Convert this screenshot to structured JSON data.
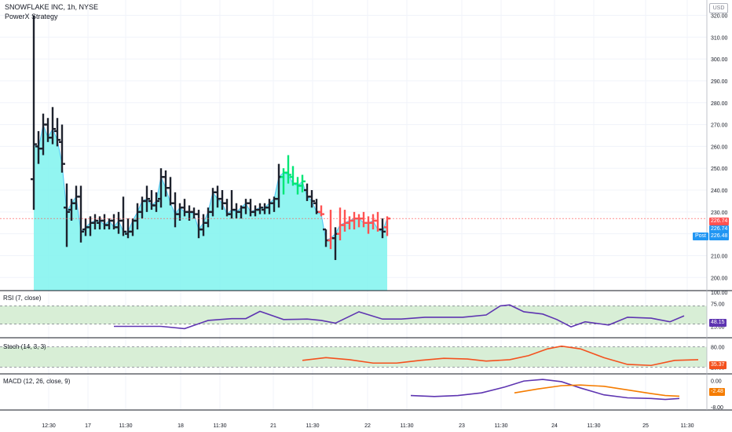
{
  "header": {
    "symbol_line": "SNOWFLAKE INC, 1h, NYSE",
    "strategy": "PowerX Strategy"
  },
  "currency_badge": "USD",
  "colors": {
    "up_bar": "#00e676",
    "down_bar": "#ff5252",
    "neutral_bar": "#1e222d",
    "area_fill": "#7ff3ef",
    "area_line": "#4fc3f7",
    "rsi_line": "#5e35b1",
    "stoch_line": "#f4511e",
    "macd_line": "#5e35b1",
    "signal_line": "#f57c00",
    "zone_fill": "#d8eed6",
    "axis_text": "#131722"
  },
  "price_tags": {
    "last_red": "226.74",
    "last_blue": "226.74",
    "post_label": "Post",
    "post_price": "226.48"
  },
  "panes": {
    "rsi": {
      "label": "RSI (7, close)",
      "value": "48.15"
    },
    "stoch": {
      "label": "Stoch (14, 3, 3)",
      "value": "35.37"
    },
    "macd": {
      "label": "MACD (12, 26, close, 9)",
      "value": "-2.48"
    }
  },
  "chart_data": [
    {
      "type": "ohlc",
      "pane": "price",
      "y_ticks": [
        200,
        210,
        220,
        230,
        240,
        250,
        260,
        270,
        280,
        290,
        300,
        310,
        320
      ],
      "ylim": [
        194,
        327
      ],
      "x_labels": [
        "12:30",
        "17",
        "11:30",
        "18",
        "11:30",
        "21",
        "11:30",
        "22",
        "11:30",
        "23",
        "11:30",
        "24",
        "11:30",
        "25",
        "11:30"
      ],
      "bars": [
        {
          "o": 245,
          "h": 320,
          "l": 231,
          "c": 261,
          "s": "n"
        },
        {
          "o": 260,
          "h": 267,
          "l": 252,
          "c": 259,
          "s": "n"
        },
        {
          "o": 259,
          "h": 275,
          "l": 256,
          "c": 270,
          "s": "n"
        },
        {
          "o": 270,
          "h": 273,
          "l": 262,
          "c": 264,
          "s": "n"
        },
        {
          "o": 264,
          "h": 278,
          "l": 261,
          "c": 268,
          "s": "n"
        },
        {
          "o": 267,
          "h": 273,
          "l": 260,
          "c": 263,
          "s": "n"
        },
        {
          "o": 262,
          "h": 270,
          "l": 248,
          "c": 252,
          "s": "n"
        },
        {
          "o": 232,
          "h": 243,
          "l": 214,
          "c": 230,
          "s": "n"
        },
        {
          "o": 231,
          "h": 236,
          "l": 226,
          "c": 234,
          "s": "n"
        },
        {
          "o": 234,
          "h": 242,
          "l": 231,
          "c": 237,
          "s": "n"
        },
        {
          "o": 237,
          "h": 242,
          "l": 216,
          "c": 221,
          "s": "n"
        },
        {
          "o": 222,
          "h": 227,
          "l": 219,
          "c": 223,
          "s": "n"
        },
        {
          "o": 223,
          "h": 228,
          "l": 219,
          "c": 225,
          "s": "n"
        },
        {
          "o": 225,
          "h": 229,
          "l": 222,
          "c": 226,
          "s": "n"
        },
        {
          "o": 225,
          "h": 228,
          "l": 222,
          "c": 226,
          "s": "n"
        },
        {
          "o": 226,
          "h": 229,
          "l": 222,
          "c": 224,
          "s": "n"
        },
        {
          "o": 224,
          "h": 227,
          "l": 222,
          "c": 226,
          "s": "n"
        },
        {
          "o": 226,
          "h": 229,
          "l": 222,
          "c": 223,
          "s": "n"
        },
        {
          "o": 223,
          "h": 230,
          "l": 220,
          "c": 226,
          "s": "n"
        },
        {
          "o": 226,
          "h": 237,
          "l": 219,
          "c": 221,
          "s": "n"
        },
        {
          "o": 220,
          "h": 227,
          "l": 218,
          "c": 221,
          "s": "n"
        },
        {
          "o": 221,
          "h": 227,
          "l": 219,
          "c": 226,
          "s": "n"
        },
        {
          "o": 226,
          "h": 234,
          "l": 222,
          "c": 230,
          "s": "n"
        },
        {
          "o": 230,
          "h": 237,
          "l": 227,
          "c": 235,
          "s": "n"
        },
        {
          "o": 235,
          "h": 242,
          "l": 230,
          "c": 236,
          "s": "n"
        },
        {
          "o": 235,
          "h": 240,
          "l": 231,
          "c": 233,
          "s": "n"
        },
        {
          "o": 233,
          "h": 239,
          "l": 230,
          "c": 235,
          "s": "n"
        },
        {
          "o": 236,
          "h": 250,
          "l": 232,
          "c": 246,
          "s": "n"
        },
        {
          "o": 246,
          "h": 249,
          "l": 237,
          "c": 241,
          "s": "n"
        },
        {
          "o": 241,
          "h": 246,
          "l": 233,
          "c": 234,
          "s": "n"
        },
        {
          "o": 234,
          "h": 239,
          "l": 223,
          "c": 229,
          "s": "n"
        },
        {
          "o": 229,
          "h": 234,
          "l": 226,
          "c": 232,
          "s": "n"
        },
        {
          "o": 232,
          "h": 236,
          "l": 228,
          "c": 230,
          "s": "n"
        },
        {
          "o": 230,
          "h": 233,
          "l": 226,
          "c": 230,
          "s": "n"
        },
        {
          "o": 230,
          "h": 232,
          "l": 227,
          "c": 229,
          "s": "n"
        },
        {
          "o": 229,
          "h": 231,
          "l": 218,
          "c": 222,
          "s": "n"
        },
        {
          "o": 222,
          "h": 229,
          "l": 219,
          "c": 225,
          "s": "n"
        },
        {
          "o": 225,
          "h": 232,
          "l": 223,
          "c": 230,
          "s": "n"
        },
        {
          "o": 230,
          "h": 241,
          "l": 228,
          "c": 239,
          "s": "n"
        },
        {
          "o": 239,
          "h": 242,
          "l": 232,
          "c": 236,
          "s": "n"
        },
        {
          "o": 236,
          "h": 240,
          "l": 231,
          "c": 234,
          "s": "n"
        },
        {
          "o": 234,
          "h": 236,
          "l": 228,
          "c": 229,
          "s": "n"
        },
        {
          "o": 229,
          "h": 240,
          "l": 227,
          "c": 231,
          "s": "n"
        },
        {
          "o": 231,
          "h": 234,
          "l": 227,
          "c": 230,
          "s": "n"
        },
        {
          "o": 230,
          "h": 233,
          "l": 227,
          "c": 232,
          "s": "n"
        },
        {
          "o": 232,
          "h": 236,
          "l": 229,
          "c": 234,
          "s": "n"
        },
        {
          "o": 234,
          "h": 236,
          "l": 228,
          "c": 230,
          "s": "n"
        },
        {
          "o": 230,
          "h": 233,
          "l": 228,
          "c": 231,
          "s": "n"
        },
        {
          "o": 231,
          "h": 234,
          "l": 229,
          "c": 232,
          "s": "n"
        },
        {
          "o": 231,
          "h": 234,
          "l": 229,
          "c": 232,
          "s": "n"
        },
        {
          "o": 232,
          "h": 236,
          "l": 229,
          "c": 234,
          "s": "n"
        },
        {
          "o": 234,
          "h": 237,
          "l": 230,
          "c": 236,
          "s": "n"
        },
        {
          "o": 236,
          "h": 252,
          "l": 232,
          "c": 246,
          "s": "n"
        },
        {
          "o": 246,
          "h": 250,
          "l": 238,
          "c": 248,
          "s": "u"
        },
        {
          "o": 248,
          "h": 256,
          "l": 243,
          "c": 247,
          "s": "u"
        },
        {
          "o": 246,
          "h": 251,
          "l": 242,
          "c": 243,
          "s": "u"
        },
        {
          "o": 243,
          "h": 246,
          "l": 238,
          "c": 242,
          "s": "u"
        },
        {
          "o": 242,
          "h": 247,
          "l": 239,
          "c": 244,
          "s": "u"
        },
        {
          "o": 240,
          "h": 243,
          "l": 235,
          "c": 237,
          "s": "n"
        },
        {
          "o": 237,
          "h": 240,
          "l": 232,
          "c": 235,
          "s": "n"
        },
        {
          "o": 234,
          "h": 236,
          "l": 229,
          "c": 230,
          "s": "n"
        },
        {
          "o": 230,
          "h": 233,
          "l": 228,
          "c": 229,
          "s": "d"
        },
        {
          "o": 222,
          "h": 222,
          "l": 214,
          "c": 217,
          "s": "n"
        },
        {
          "o": 217,
          "h": 231,
          "l": 213,
          "c": 218,
          "s": "d"
        },
        {
          "o": 218,
          "h": 223,
          "l": 208,
          "c": 220,
          "s": "n"
        },
        {
          "o": 220,
          "h": 232,
          "l": 217,
          "c": 224,
          "s": "d"
        },
        {
          "o": 224,
          "h": 231,
          "l": 221,
          "c": 225,
          "s": "d"
        },
        {
          "o": 225,
          "h": 228,
          "l": 222,
          "c": 226,
          "s": "d"
        },
        {
          "o": 226,
          "h": 230,
          "l": 222,
          "c": 227,
          "s": "d"
        },
        {
          "o": 227,
          "h": 229,
          "l": 223,
          "c": 227,
          "s": "d"
        },
        {
          "o": 227,
          "h": 230,
          "l": 223,
          "c": 225,
          "s": "d"
        },
        {
          "o": 225,
          "h": 228,
          "l": 220,
          "c": 225,
          "s": "d"
        },
        {
          "o": 225,
          "h": 229,
          "l": 222,
          "c": 226,
          "s": "d"
        },
        {
          "o": 226,
          "h": 230,
          "l": 221,
          "c": 222,
          "s": "d"
        },
        {
          "o": 222,
          "h": 227,
          "l": 218,
          "c": 221,
          "s": "n"
        },
        {
          "o": 223,
          "h": 228,
          "l": 219,
          "c": 227,
          "s": "d"
        }
      ]
    },
    {
      "type": "line",
      "pane": "rsi",
      "y_ticks": [
        "100.00",
        "75.00",
        "25.00"
      ],
      "ylim": [
        0,
        100
      ],
      "band": [
        30,
        70
      ],
      "points": [
        [
          17,
          25
        ],
        [
          22,
          25
        ],
        [
          27,
          25
        ],
        [
          32,
          20
        ],
        [
          37,
          38
        ],
        [
          42,
          42
        ],
        [
          45,
          42
        ],
        [
          48,
          58
        ],
        [
          53,
          40
        ],
        [
          58,
          41
        ],
        [
          61,
          38
        ],
        [
          64,
          32
        ],
        [
          69,
          57
        ],
        [
          74,
          41
        ],
        [
          78,
          41
        ],
        [
          83,
          45
        ],
        [
          88,
          45
        ],
        [
          91,
          45
        ],
        [
          96,
          50
        ],
        [
          99,
          70
        ],
        [
          101,
          72
        ],
        [
          104,
          57
        ],
        [
          108,
          52
        ],
        [
          111,
          40
        ],
        [
          114,
          24
        ],
        [
          117,
          35
        ],
        [
          122,
          28
        ],
        [
          126,
          45
        ],
        [
          131,
          43
        ],
        [
          135,
          35
        ],
        [
          138,
          48
        ]
      ]
    },
    {
      "type": "line",
      "pane": "stoch",
      "y_ticks": [
        "80.00",
        "20.00"
      ],
      "ylim": [
        0,
        100
      ],
      "band": [
        20,
        80
      ],
      "points": [
        [
          57,
          40
        ],
        [
          62,
          48
        ],
        [
          67,
          42
        ],
        [
          72,
          32
        ],
        [
          77,
          32
        ],
        [
          82,
          40
        ],
        [
          87,
          46
        ],
        [
          92,
          44
        ],
        [
          96,
          38
        ],
        [
          101,
          42
        ],
        [
          105,
          54
        ],
        [
          109,
          74
        ],
        [
          112,
          82
        ],
        [
          116,
          74
        ],
        [
          121,
          48
        ],
        [
          126,
          28
        ],
        [
          131,
          25
        ],
        [
          136,
          40
        ],
        [
          141,
          42
        ]
      ]
    },
    {
      "type": "line",
      "pane": "macd",
      "y_ticks": [
        "0.00",
        "-8.00"
      ],
      "ylim": [
        -9,
        1.5
      ],
      "series": [
        {
          "points": [
            [
              80,
              -4.6
            ],
            [
              85,
              -4.9
            ],
            [
              90,
              -4.6
            ],
            [
              95,
              -3.8
            ],
            [
              100,
              -2.0
            ],
            [
              104,
              -0.2
            ],
            [
              108,
              0.3
            ],
            [
              112,
              -0.4
            ],
            [
              116,
              -2.3
            ],
            [
              121,
              -4.4
            ],
            [
              126,
              -5.3
            ],
            [
              131,
              -5.5
            ],
            [
              134,
              -5.8
            ],
            [
              137,
              -5.5
            ]
          ]
        },
        {
          "points": [
            [
              102,
              -3.8
            ],
            [
              107,
              -2.6
            ],
            [
              112,
              -1.6
            ],
            [
              116,
              -1.4
            ],
            [
              121,
              -1.8
            ],
            [
              126,
              -2.9
            ],
            [
              131,
              -4.0
            ],
            [
              134,
              -4.6
            ],
            [
              137,
              -4.8
            ]
          ]
        }
      ]
    }
  ]
}
